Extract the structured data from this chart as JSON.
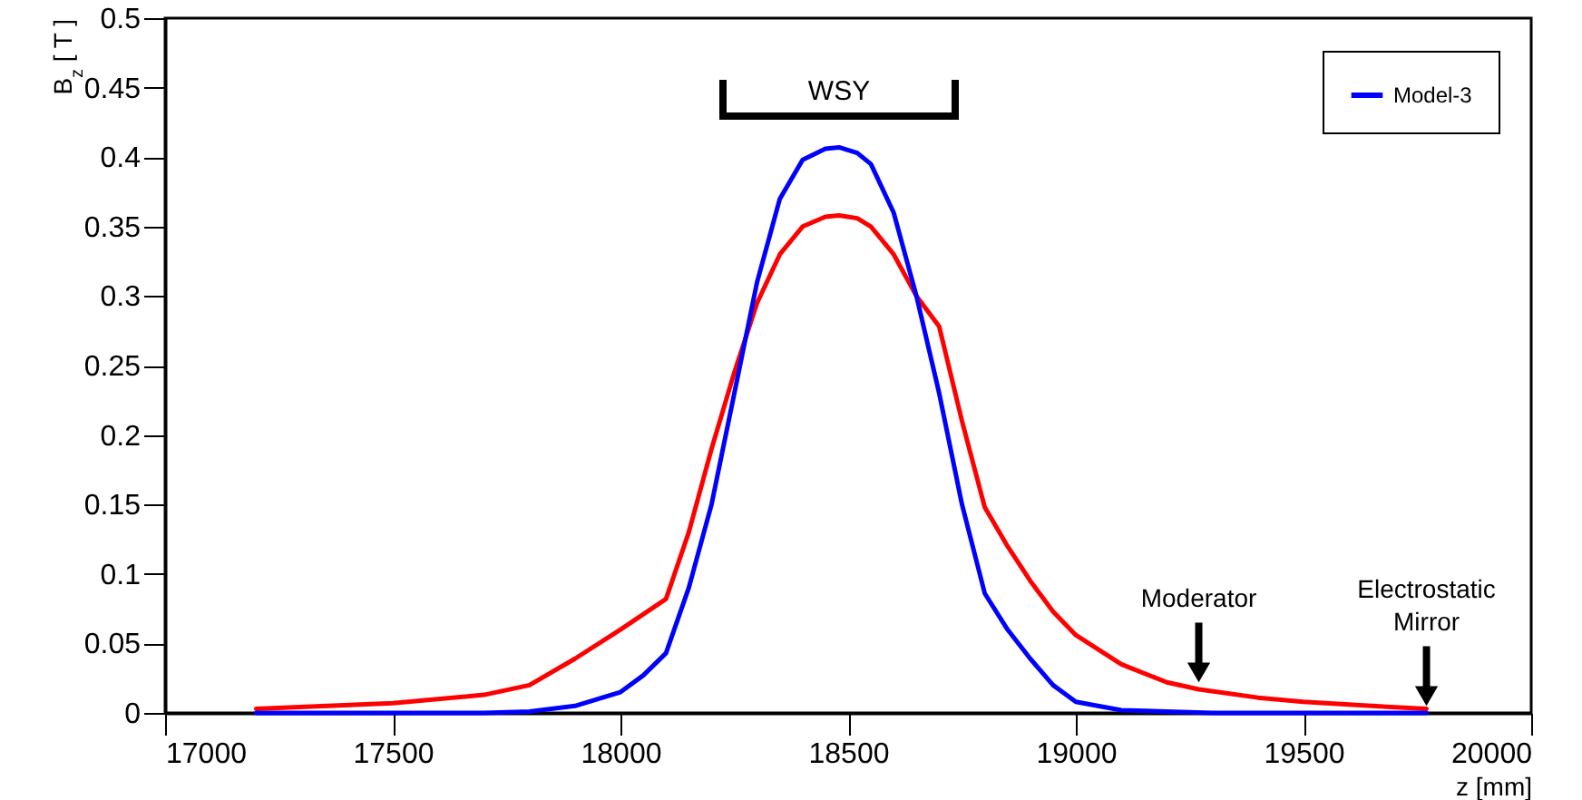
{
  "chart_data": {
    "type": "line",
    "xlabel": "z [mm]",
    "ylabel": "B$_{z}$ [ T ]",
    "xlim": [
      17000,
      20000
    ],
    "xticks": [
      17000,
      17500,
      18000,
      18500,
      19000,
      19500,
      20000
    ],
    "ylim": [
      0,
      0.5
    ],
    "yticks": [
      0,
      0.05,
      0.1,
      0.15,
      0.2,
      0.25,
      0.3,
      0.35,
      0.4,
      0.45,
      0.5
    ],
    "grid": false,
    "legend": "top right",
    "line_style": "solid",
    "marker": "none",
    "series": [
      {
        "color": "#ff0000",
        "x": [
          17200,
          17500,
          17700,
          17800,
          17900,
          18000,
          18100,
          18150,
          18200,
          18250,
          18300,
          18350,
          18400,
          18450,
          18480,
          18520,
          18550,
          18600,
          18650,
          18700,
          18750,
          18800,
          18850,
          18900,
          18950,
          19000,
          19100,
          19200,
          19270,
          19400,
          19500,
          19650,
          19770
        ],
        "values": [
          0.003,
          0.007,
          0.013,
          0.02,
          0.039,
          0.06,
          0.082,
          0.13,
          0.19,
          0.245,
          0.295,
          0.33,
          0.35,
          0.357,
          0.358,
          0.356,
          0.35,
          0.33,
          0.3,
          0.278,
          0.21,
          0.148,
          0.12,
          0.095,
          0.073,
          0.056,
          0.035,
          0.022,
          0.017,
          0.011,
          0.008,
          0.005,
          0.003
        ]
      },
      {
        "name": "Model-3",
        "color": "#0000ff",
        "x": [
          17200,
          17700,
          17800,
          17900,
          18000,
          18050,
          18100,
          18150,
          18200,
          18250,
          18300,
          18350,
          18400,
          18450,
          18480,
          18520,
          18550,
          18600,
          18650,
          18700,
          18750,
          18800,
          18850,
          18900,
          18950,
          19000,
          19100,
          19200,
          19300,
          19770
        ],
        "values": [
          0,
          0,
          0.001,
          0.005,
          0.015,
          0.027,
          0.043,
          0.09,
          0.15,
          0.23,
          0.31,
          0.37,
          0.398,
          0.406,
          0.407,
          0.403,
          0.395,
          0.36,
          0.3,
          0.23,
          0.15,
          0.086,
          0.06,
          0.039,
          0.02,
          0.008,
          0.002,
          0.001,
          0,
          0
        ]
      }
    ],
    "annotations": [
      "WSY",
      {
        "text": "Moderator",
        "x": 19270,
        "y": 0.02
      },
      {
        "text": "Electrostatic Mirror",
        "x": 19770,
        "y": 0.003
      }
    ]
  }
}
